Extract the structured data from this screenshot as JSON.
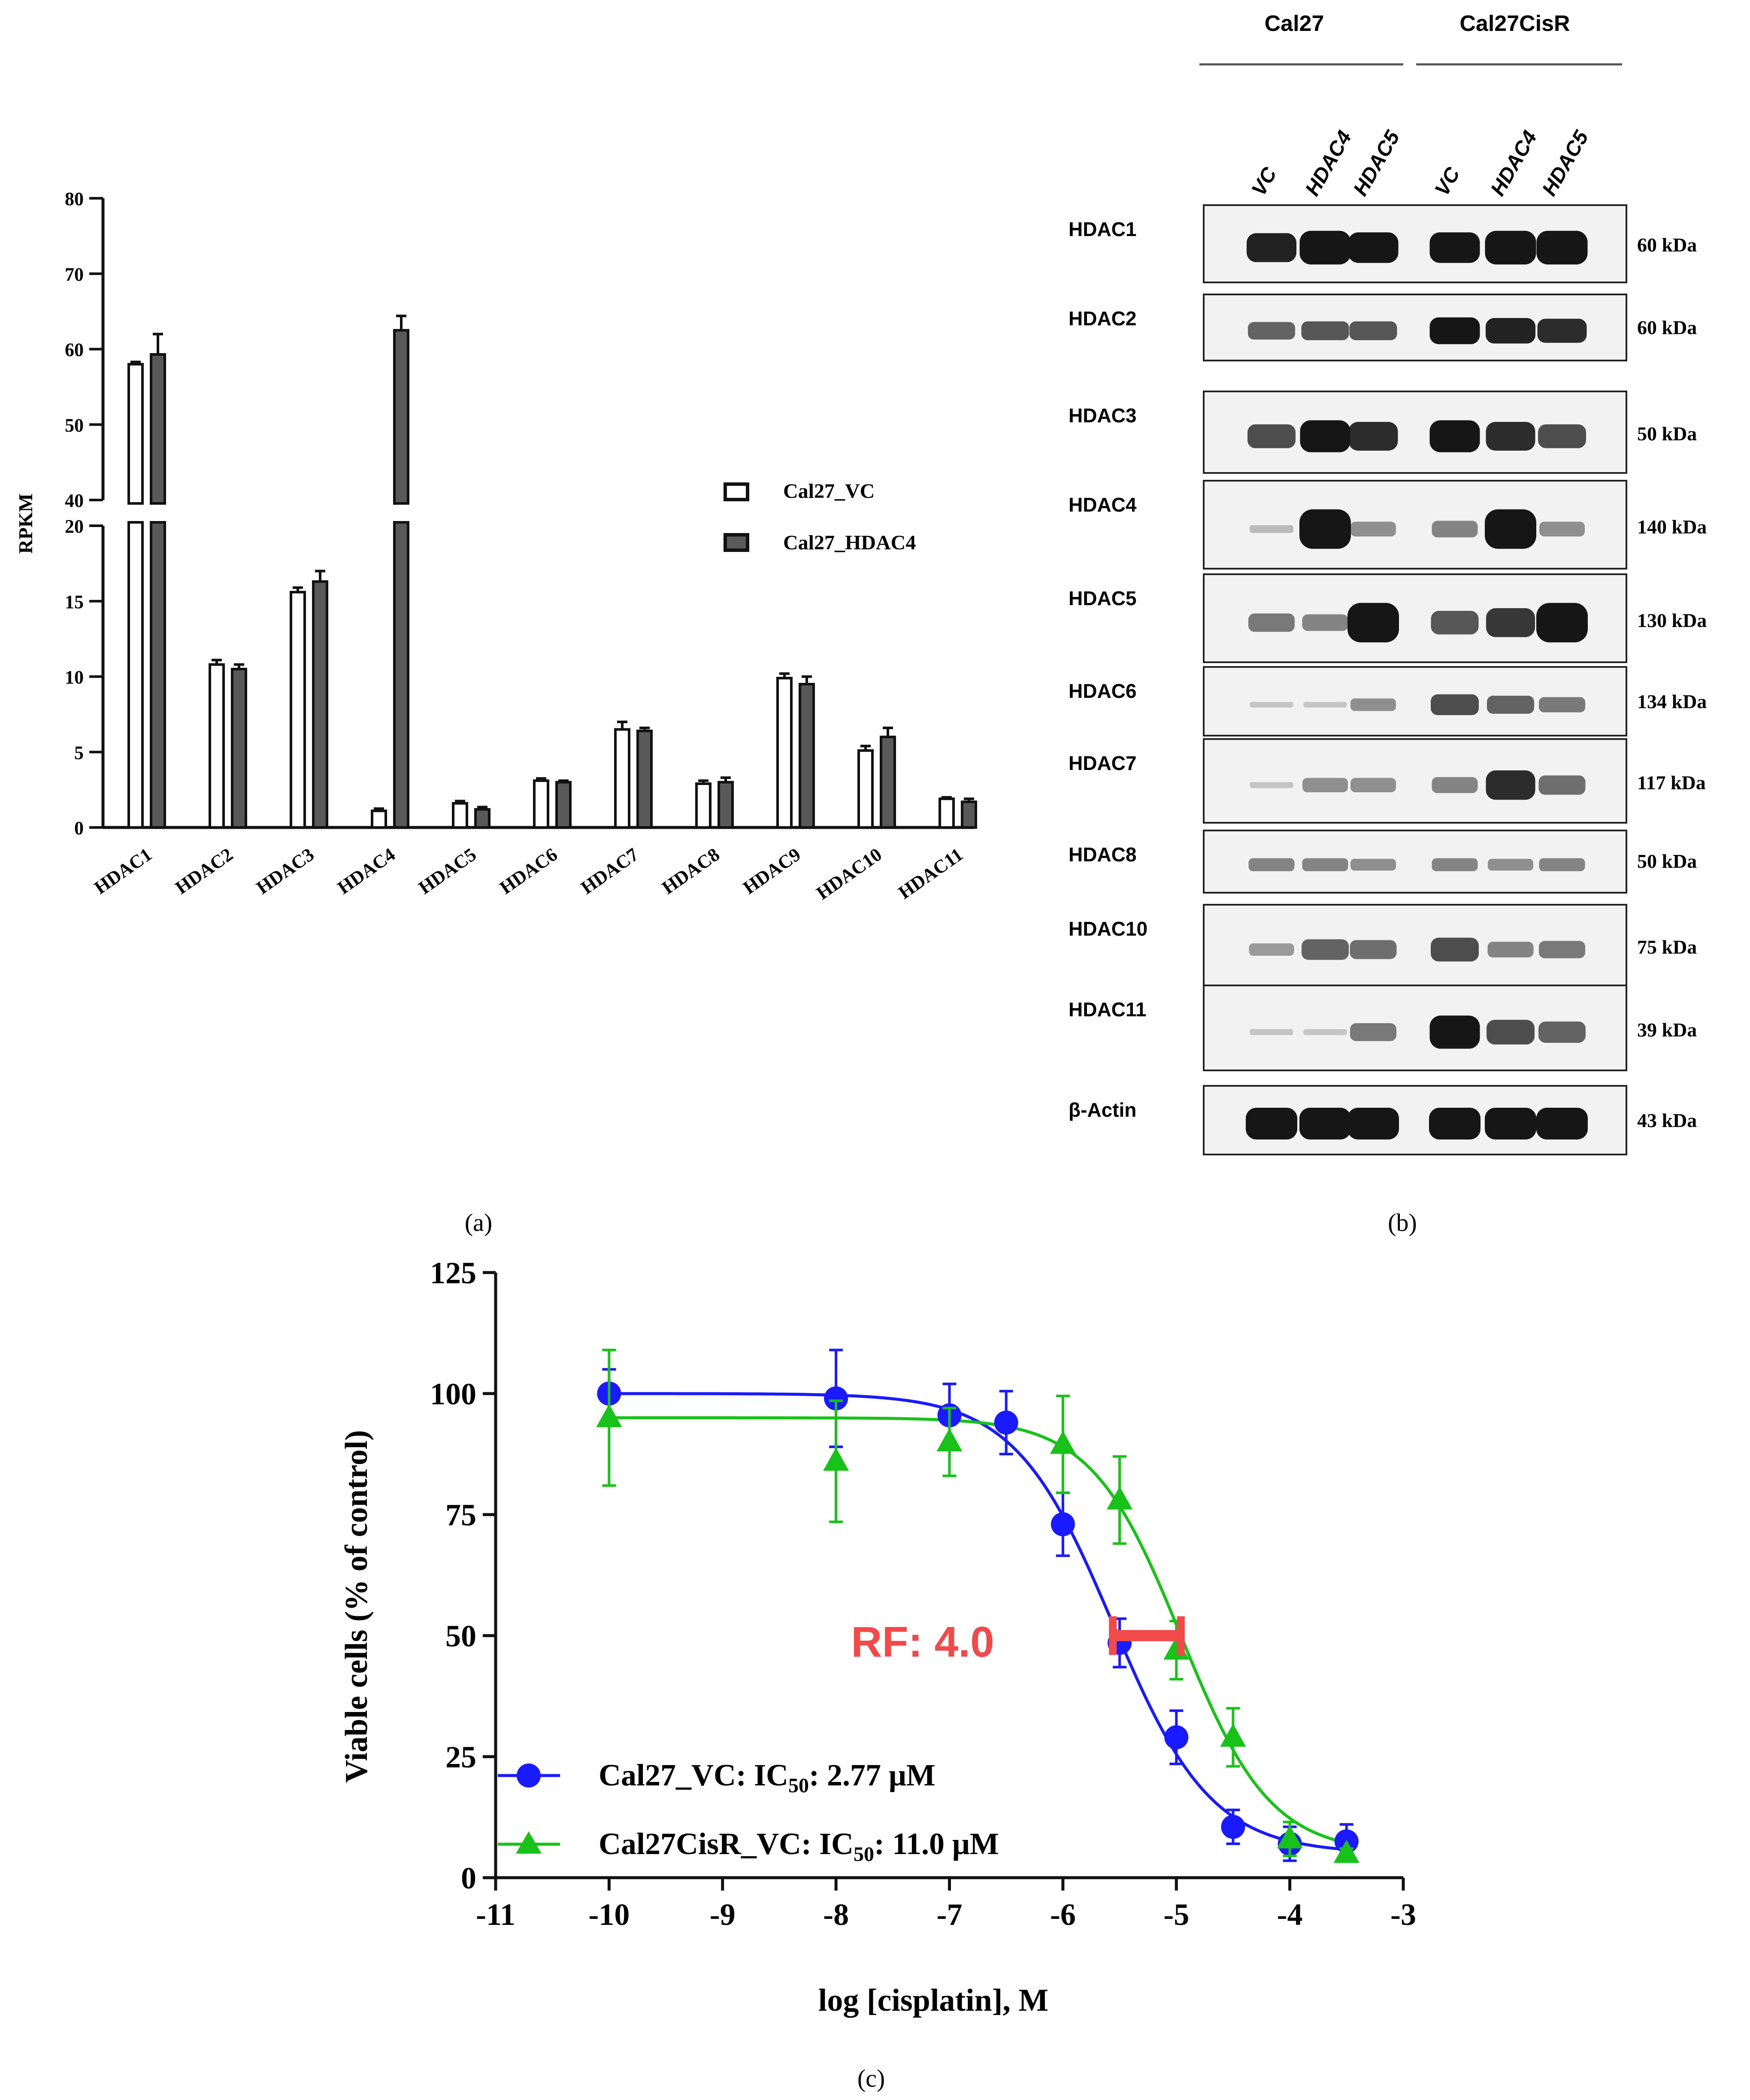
{
  "panel_labels": {
    "a": "(a)",
    "b": "(b)",
    "c": "(c)"
  },
  "colors": {
    "bar_vc": "#ffffff",
    "bar_hdac4": "#595959",
    "axis": "#111111",
    "blue": "#1a1aff",
    "green": "#19c219",
    "rf": "#f04a4a",
    "blot_bg": "#f2f2f2",
    "band": "#161616"
  },
  "chart_data": [
    {
      "type": "bar",
      "panel": "a",
      "categories": [
        "HDAC1",
        "HDAC2",
        "HDAC3",
        "HDAC4",
        "HDAC5",
        "HDAC6",
        "HDAC7",
        "HDAC8",
        "HDAC9",
        "HDAC10",
        "HDAC11"
      ],
      "series": [
        {
          "name": "Cal27_VC",
          "values": [
            58.0,
            10.8,
            15.6,
            1.1,
            1.6,
            3.1,
            6.5,
            2.9,
            9.9,
            5.1,
            1.9
          ],
          "errors": [
            0.3,
            0.3,
            0.3,
            0.15,
            0.15,
            0.15,
            0.5,
            0.2,
            0.3,
            0.3,
            0.1
          ]
        },
        {
          "name": "Cal27_HDAC4",
          "values": [
            59.3,
            10.5,
            16.3,
            62.5,
            1.2,
            3.0,
            6.4,
            3.0,
            9.5,
            6.0,
            1.7
          ],
          "errors": [
            2.7,
            0.3,
            0.7,
            1.9,
            0.15,
            0.1,
            0.2,
            0.3,
            0.5,
            0.6,
            0.2
          ]
        }
      ],
      "ylabel": "RPKM",
      "xlabel": "",
      "y_break": {
        "lower": [
          0,
          20
        ],
        "upper": [
          40,
          80
        ]
      },
      "lower_ticks": [
        0,
        5,
        10,
        15,
        20
      ],
      "upper_ticks": [
        40,
        50,
        60,
        70,
        80
      ],
      "legend": [
        "Cal27_VC",
        "Cal27_HDAC4"
      ],
      "legend_position": "right"
    },
    {
      "type": "western-blot",
      "panel": "b",
      "groups": [
        "Cal27",
        "Cal27CisR"
      ],
      "lanes": [
        "VC",
        "HDAC4",
        "HDAC5",
        "VC",
        "HDAC4",
        "HDAC5"
      ],
      "rows": [
        {
          "protein": "HDAC1",
          "size": "60 kDa",
          "intensity": [
            0.8,
            0.95,
            0.85,
            0.85,
            0.95,
            0.95
          ]
        },
        {
          "protein": "HDAC2",
          "size": "60 kDa",
          "intensity": [
            0.5,
            0.55,
            0.55,
            0.85,
            0.8,
            0.75
          ]
        },
        {
          "protein": "HDAC3",
          "size": "50 kDa",
          "intensity": [
            0.6,
            0.85,
            0.75,
            0.85,
            0.75,
            0.6
          ]
        },
        {
          "protein": "HDAC4",
          "size": "140 kDa",
          "intensity": [
            0.1,
            1.0,
            0.3,
            0.35,
            1.0,
            0.3
          ]
        },
        {
          "protein": "HDAC5",
          "size": "130 kDa",
          "intensity": [
            0.4,
            0.35,
            1.0,
            0.55,
            0.7,
            1.0
          ]
        },
        {
          "protein": "HDAC6",
          "size": "134 kDa",
          "intensity": [
            0.05,
            0.05,
            0.3,
            0.6,
            0.5,
            0.4
          ]
        },
        {
          "protein": "HDAC7",
          "size": "117 kDa",
          "intensity": [
            0.05,
            0.3,
            0.3,
            0.35,
            0.75,
            0.45
          ]
        },
        {
          "protein": "HDAC8",
          "size": "50 kDa",
          "intensity": [
            0.35,
            0.35,
            0.3,
            0.35,
            0.3,
            0.35
          ]
        },
        {
          "protein": "HDAC10",
          "size": "75 kDa",
          "intensity": [
            0.25,
            0.5,
            0.45,
            0.6,
            0.35,
            0.4
          ]
        },
        {
          "protein": "HDAC11",
          "size": "39 kDa",
          "intensity": [
            0.05,
            0.05,
            0.4,
            0.85,
            0.6,
            0.5
          ]
        },
        {
          "protein": "β-Actin",
          "size": "43 kDa",
          "intensity": [
            1.0,
            1.0,
            1.0,
            1.0,
            1.0,
            1.0
          ]
        }
      ]
    },
    {
      "type": "line",
      "panel": "c",
      "xlabel": "log [cisplatin], M",
      "ylabel": "Viable cells (% of control)",
      "xlim": [
        -11,
        -3
      ],
      "ylim": [
        0,
        125
      ],
      "x_ticks": [
        -11,
        -10,
        -9,
        -8,
        -7,
        -6,
        -5,
        -4,
        -3
      ],
      "y_ticks": [
        0,
        25,
        50,
        75,
        100,
        125
      ],
      "annotation": "RF: 4.0",
      "ic50_bar": {
        "y": 50,
        "x_from": -5.56,
        "x_to": -4.96
      },
      "series": [
        {
          "name": "Cal27_VC",
          "legend_prefix": "Cal27_VC: IC",
          "legend_subscript": "50",
          "legend_suffix": ": 2.77 μM",
          "marker": "circle",
          "x": [
            -10,
            -8,
            -7,
            -6.5,
            -6,
            -5.5,
            -5,
            -4.5,
            -4,
            -3.5
          ],
          "y": [
            100,
            99,
            95.5,
            94,
            73,
            48.5,
            29,
            10.5,
            7,
            7.5
          ],
          "err": [
            5,
            10,
            6.5,
            6.5,
            6.5,
            5,
            5.5,
            3.5,
            3.5,
            3.5
          ],
          "fit": {
            "top": 100,
            "bottom": 5,
            "log_ic50": -5.56,
            "hill": 1.0
          }
        },
        {
          "name": "Cal27CisR_VC",
          "legend_prefix": "Cal27CisR_VC: IC",
          "legend_subscript": "50",
          "legend_suffix": ": 11.0 μM",
          "marker": "triangle",
          "x": [
            -10,
            -8,
            -7,
            -6,
            -5.5,
            -5,
            -4.5,
            -4,
            -3.5
          ],
          "y": [
            95,
            86,
            90,
            89.5,
            78,
            47,
            29,
            8,
            5
          ],
          "err": [
            14,
            12.5,
            7,
            10,
            9,
            6,
            6,
            3.5,
            1
          ],
          "fit": {
            "top": 95,
            "bottom": 5,
            "log_ic50": -4.96,
            "hill": 1.1
          }
        }
      ]
    }
  ]
}
